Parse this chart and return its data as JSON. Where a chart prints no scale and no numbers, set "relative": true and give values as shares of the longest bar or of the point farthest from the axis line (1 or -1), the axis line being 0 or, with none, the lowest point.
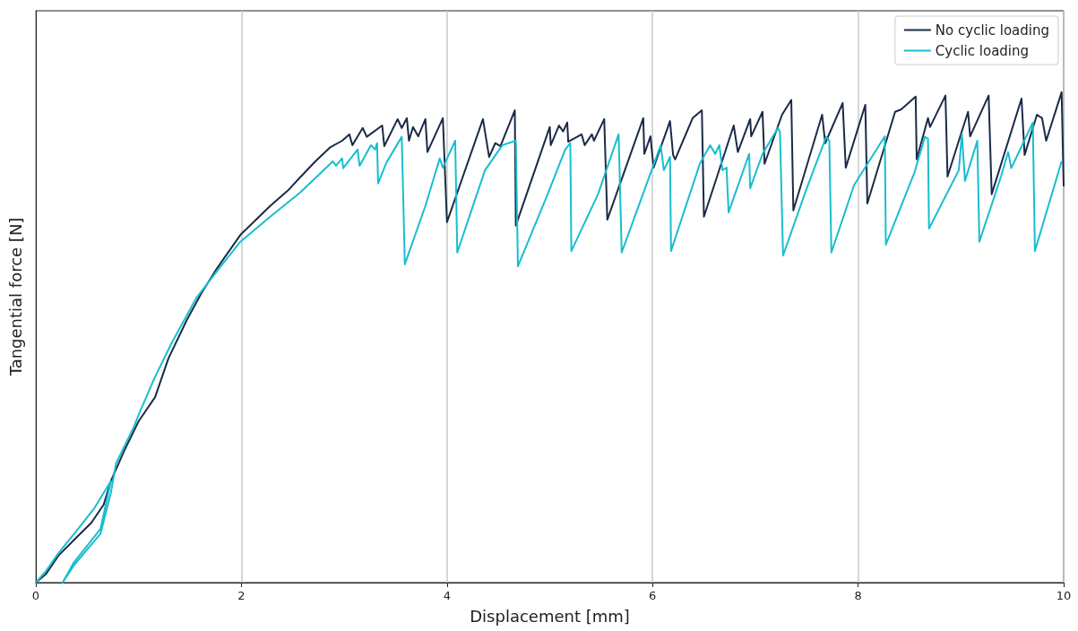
{
  "chart_data": {
    "type": "line",
    "xlabel": "Displacement [mm]",
    "ylabel": "Tangential force [N]",
    "relative": true,
    "xlim": [
      0,
      10
    ],
    "xticks": [
      0,
      2,
      4,
      6,
      8,
      10
    ],
    "grid": "x",
    "legend": "top right",
    "marker": "none",
    "line_style": "solid",
    "series": [
      {
        "name": "No cyclic loading",
        "color": "#1b2a47",
        "x": [
          0,
          0.1,
          0.22,
          0.39,
          0.54,
          0.66,
          0.73,
          0.86,
          1.0,
          1.16,
          1.29,
          1.47,
          1.61,
          1.76,
          1.99,
          2.28,
          2.45,
          2.57,
          2.72,
          2.86,
          2.98,
          3.05,
          3.08,
          3.18,
          3.22,
          3.37,
          3.39,
          3.52,
          3.56,
          3.61,
          3.63,
          3.67,
          3.72,
          3.79,
          3.81,
          3.96,
          4.0,
          4.35,
          4.41,
          4.47,
          4.52,
          4.66,
          4.67,
          5.0,
          5.01,
          5.09,
          5.13,
          5.17,
          5.18,
          5.31,
          5.34,
          5.41,
          5.43,
          5.53,
          5.56,
          5.91,
          5.92,
          5.98,
          6.01,
          6.17,
          6.2,
          6.22,
          6.39,
          6.48,
          6.5,
          6.79,
          6.83,
          6.95,
          6.96,
          7.07,
          7.09,
          7.26,
          7.35,
          7.37,
          7.65,
          7.68,
          7.85,
          7.88,
          8.07,
          8.09,
          8.36,
          8.42,
          8.56,
          8.57,
          8.68,
          8.7,
          8.85,
          8.87,
          8.98,
          9.07,
          9.09,
          9.27,
          9.3,
          9.59,
          9.62,
          9.74,
          9.79,
          9.83,
          9.98,
          10.0
        ],
        "values": [
          0,
          0.018,
          0.055,
          0.091,
          0.122,
          0.159,
          0.207,
          0.269,
          0.329,
          0.378,
          0.457,
          0.536,
          0.59,
          0.64,
          0.709,
          0.768,
          0.799,
          0.826,
          0.859,
          0.887,
          0.901,
          0.914,
          0.892,
          0.927,
          0.909,
          0.932,
          0.89,
          0.945,
          0.927,
          0.947,
          0.901,
          0.929,
          0.91,
          0.945,
          0.878,
          0.947,
          0.735,
          0.945,
          0.868,
          0.896,
          0.89,
          0.963,
          0.728,
          0.929,
          0.892,
          0.932,
          0.92,
          0.938,
          0.899,
          0.914,
          0.892,
          0.914,
          0.901,
          0.945,
          0.74,
          0.947,
          0.874,
          0.91,
          0.846,
          0.941,
          0.872,
          0.863,
          0.947,
          0.963,
          0.746,
          0.932,
          0.878,
          0.945,
          0.91,
          0.96,
          0.854,
          0.954,
          0.984,
          0.759,
          0.954,
          0.896,
          0.978,
          0.846,
          0.974,
          0.773,
          0.96,
          0.965,
          0.991,
          0.863,
          0.947,
          0.929,
          0.993,
          0.828,
          0.901,
          0.96,
          0.91,
          0.993,
          0.792,
          0.987,
          0.872,
          0.954,
          0.947,
          0.901,
          1,
          0.808
        ]
      },
      {
        "name": "Cyclic loading",
        "color": "#17becf",
        "x": [
          0,
          0.1,
          0.22,
          0.39,
          0.57,
          0.73,
          0.63,
          0.51,
          0.37,
          0.26,
          0.37,
          0.51,
          0.63,
          0.73,
          0.78,
          0.95,
          1.0,
          1.15,
          1.32,
          1.56,
          1.78,
          1.99,
          2.28,
          2.57,
          2.89,
          2.92,
          2.98,
          2.99,
          3.13,
          3.15,
          3.26,
          3.3,
          3.32,
          3.33,
          3.41,
          3.56,
          3.59,
          3.79,
          3.93,
          3.96,
          4.08,
          4.1,
          4.37,
          4.54,
          4.67,
          4.69,
          4.98,
          5.15,
          5.2,
          5.21,
          5.47,
          5.67,
          5.7,
          6.0,
          6.08,
          6.11,
          6.17,
          6.18,
          6.46,
          6.56,
          6.61,
          6.65,
          6.68,
          6.72,
          6.74,
          6.94,
          6.95,
          7.07,
          7.22,
          7.24,
          7.27,
          7.5,
          7.69,
          7.72,
          7.74,
          7.96,
          8.26,
          8.27,
          8.55,
          8.65,
          8.68,
          8.69,
          8.98,
          9.01,
          9.04,
          9.16,
          9.18,
          9.39,
          9.46,
          9.49,
          9.7,
          9.72,
          9.98
        ],
        "values": [
          0,
          0.024,
          0.06,
          0.104,
          0.152,
          0.207,
          0.11,
          0.078,
          0.041,
          0,
          0.035,
          0.07,
          0.1,
          0.183,
          0.243,
          0.316,
          0.342,
          0.415,
          0.488,
          0.58,
          0.64,
          0.695,
          0.746,
          0.795,
          0.859,
          0.85,
          0.865,
          0.845,
          0.883,
          0.85,
          0.892,
          0.883,
          0.896,
          0.814,
          0.856,
          0.909,
          0.649,
          0.768,
          0.865,
          0.846,
          0.901,
          0.673,
          0.841,
          0.892,
          0.901,
          0.645,
          0.792,
          0.883,
          0.896,
          0.676,
          0.792,
          0.914,
          0.673,
          0.846,
          0.892,
          0.841,
          0.868,
          0.676,
          0.854,
          0.892,
          0.874,
          0.892,
          0.841,
          0.846,
          0.755,
          0.874,
          0.804,
          0.874,
          0.927,
          0.918,
          0.667,
          0.804,
          0.909,
          0.901,
          0.673,
          0.81,
          0.91,
          0.689,
          0.837,
          0.909,
          0.905,
          0.722,
          0.841,
          0.914,
          0.819,
          0.901,
          0.695,
          0.828,
          0.878,
          0.845,
          0.938,
          0.676,
          0.859
        ]
      }
    ]
  }
}
